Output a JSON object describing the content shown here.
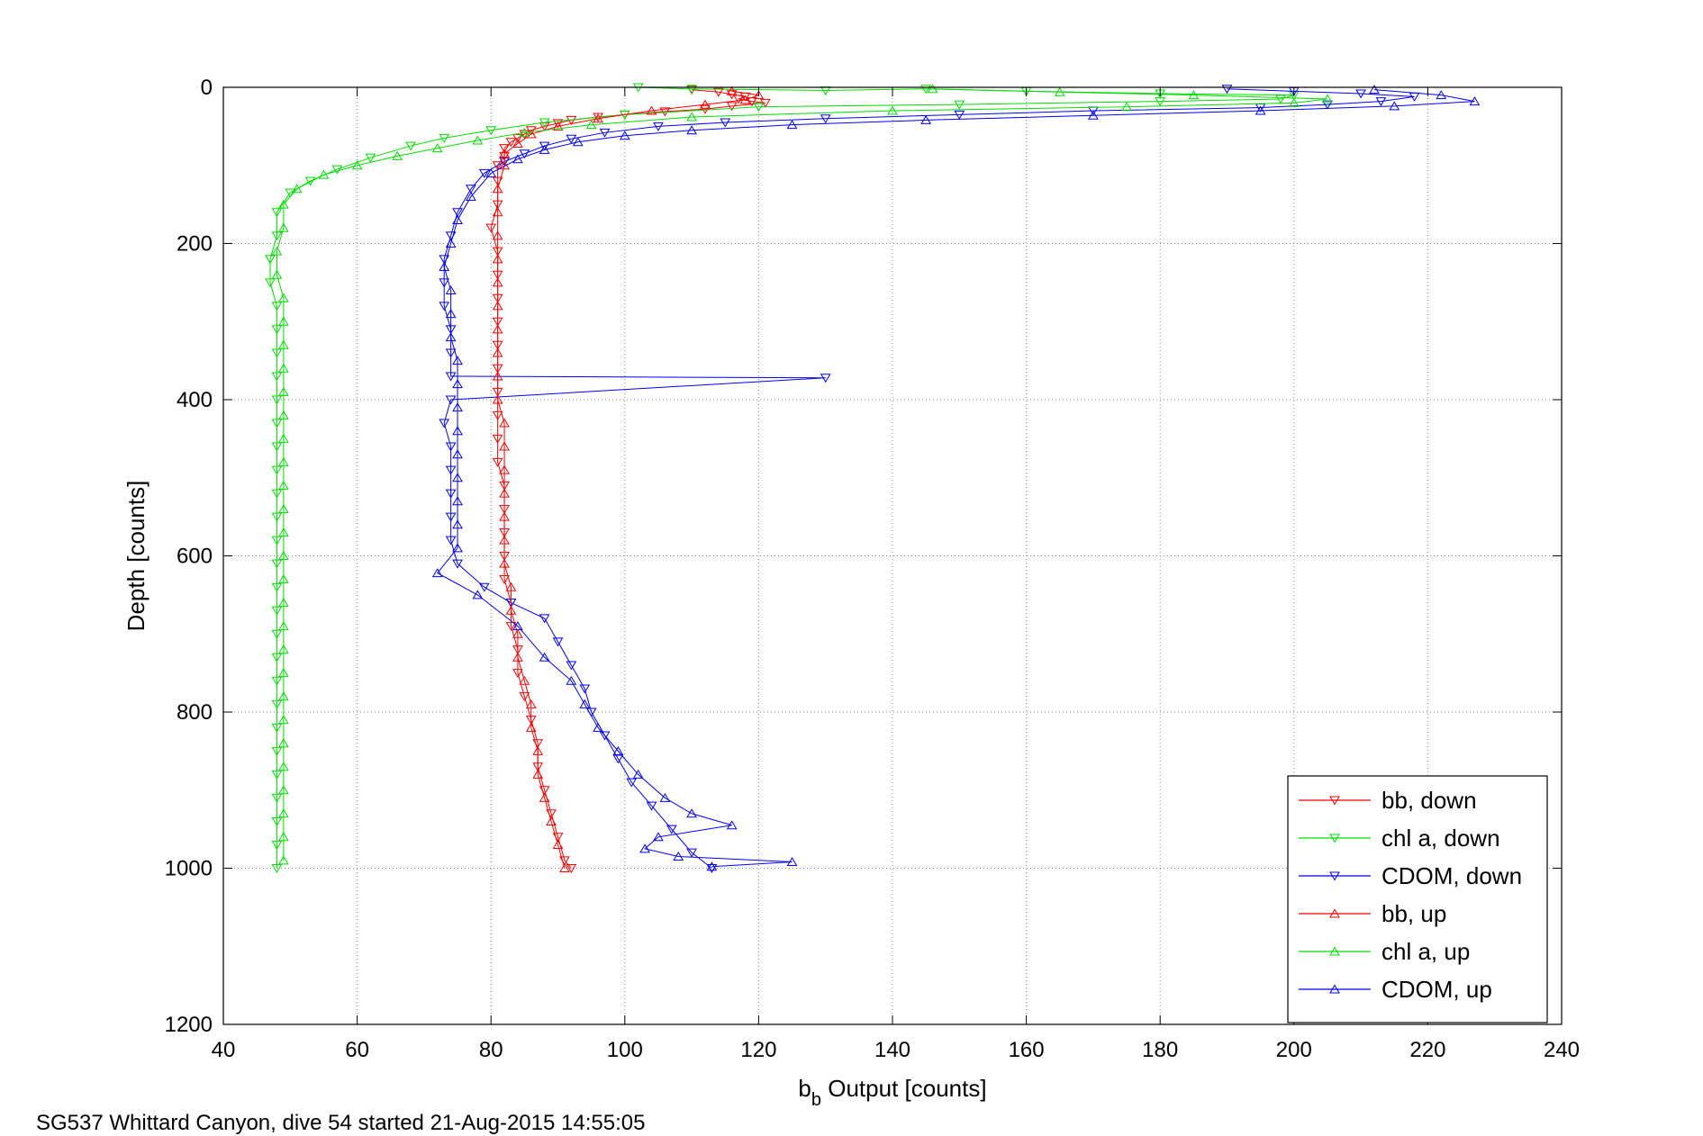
{
  "caption": "SG537 Whittard Canyon, dive 54 started 21-Aug-2015 14:55:05",
  "chart_data": {
    "type": "scatter",
    "xlabel_main": "b",
    "xlabel_sub": "b",
    "xlabel_rest": " Output [counts]",
    "ylabel": "Depth [counts]",
    "xlim": [
      40,
      240
    ],
    "ylim": [
      0,
      1200
    ],
    "y_reversed": true,
    "grid": true,
    "legend_position": "bottom-right",
    "xticks": [
      "40",
      "60",
      "80",
      "100",
      "120",
      "140",
      "160",
      "180",
      "200",
      "220",
      "240"
    ],
    "yticks": [
      "0",
      "200",
      "400",
      "600",
      "800",
      "1000",
      "1200"
    ],
    "series": [
      {
        "name": "bb, down",
        "color": "#ff0000",
        "marker": "down",
        "points": [
          [
            110,
            3
          ],
          [
            114,
            6
          ],
          [
            116,
            9
          ],
          [
            118,
            12
          ],
          [
            117,
            15
          ],
          [
            119,
            18
          ],
          [
            121,
            20
          ],
          [
            116,
            24
          ],
          [
            112,
            28
          ],
          [
            106,
            31
          ],
          [
            100,
            35
          ],
          [
            96,
            38
          ],
          [
            92,
            42
          ],
          [
            90,
            46
          ],
          [
            88,
            50
          ],
          [
            86,
            55
          ],
          [
            85,
            60
          ],
          [
            84,
            65
          ],
          [
            83,
            70
          ],
          [
            82,
            78
          ],
          [
            82,
            88
          ],
          [
            81,
            100
          ],
          [
            81,
            120
          ],
          [
            81,
            150
          ],
          [
            80,
            180
          ],
          [
            81,
            210
          ],
          [
            81,
            240
          ],
          [
            81,
            270
          ],
          [
            81,
            300
          ],
          [
            81,
            330
          ],
          [
            81,
            360
          ],
          [
            81,
            390
          ],
          [
            81,
            420
          ],
          [
            81,
            450
          ],
          [
            81,
            480
          ],
          [
            82,
            510
          ],
          [
            82,
            540
          ],
          [
            82,
            570
          ],
          [
            82,
            600
          ],
          [
            82,
            630
          ],
          [
            83,
            660
          ],
          [
            83,
            690
          ],
          [
            84,
            720
          ],
          [
            84,
            750
          ],
          [
            85,
            780
          ],
          [
            86,
            810
          ],
          [
            87,
            840
          ],
          [
            87,
            870
          ],
          [
            88,
            900
          ],
          [
            89,
            930
          ],
          [
            90,
            960
          ],
          [
            91,
            990
          ],
          [
            92,
            1000
          ]
        ]
      },
      {
        "name": "chl a, down",
        "color": "#00dd00",
        "marker": "down",
        "points": [
          [
            102,
            0
          ],
          [
            110,
            2
          ],
          [
            130,
            4
          ],
          [
            145,
            2
          ],
          [
            160,
            5
          ],
          [
            180,
            8
          ],
          [
            200,
            10
          ],
          [
            198,
            15
          ],
          [
            180,
            18
          ],
          [
            150,
            22
          ],
          [
            120,
            25
          ],
          [
            100,
            35
          ],
          [
            88,
            45
          ],
          [
            80,
            55
          ],
          [
            73,
            65
          ],
          [
            68,
            75
          ],
          [
            62,
            90
          ],
          [
            57,
            105
          ],
          [
            53,
            120
          ],
          [
            50,
            135
          ],
          [
            48,
            160
          ],
          [
            48,
            190
          ],
          [
            47,
            220
          ],
          [
            47,
            250
          ],
          [
            48,
            280
          ],
          [
            48,
            310
          ],
          [
            48,
            340
          ],
          [
            48,
            370
          ],
          [
            48,
            400
          ],
          [
            48,
            430
          ],
          [
            48,
            460
          ],
          [
            48,
            490
          ],
          [
            48,
            520
          ],
          [
            48,
            550
          ],
          [
            48,
            580
          ],
          [
            48,
            610
          ],
          [
            48,
            640
          ],
          [
            48,
            670
          ],
          [
            48,
            700
          ],
          [
            48,
            730
          ],
          [
            48,
            760
          ],
          [
            48,
            790
          ],
          [
            48,
            820
          ],
          [
            48,
            850
          ],
          [
            48,
            880
          ],
          [
            48,
            910
          ],
          [
            48,
            940
          ],
          [
            48,
            970
          ],
          [
            48,
            1000
          ]
        ]
      },
      {
        "name": "CDOM, down",
        "color": "#0000ff",
        "marker": "down",
        "points": [
          [
            190,
            2
          ],
          [
            200,
            5
          ],
          [
            210,
            8
          ],
          [
            218,
            12
          ],
          [
            213,
            18
          ],
          [
            205,
            22
          ],
          [
            195,
            26
          ],
          [
            170,
            30
          ],
          [
            150,
            35
          ],
          [
            130,
            40
          ],
          [
            115,
            45
          ],
          [
            105,
            50
          ],
          [
            97,
            58
          ],
          [
            92,
            66
          ],
          [
            88,
            75
          ],
          [
            85,
            85
          ],
          [
            82,
            95
          ],
          [
            79,
            110
          ],
          [
            77,
            130
          ],
          [
            75,
            160
          ],
          [
            74,
            190
          ],
          [
            73,
            220
          ],
          [
            73,
            250
          ],
          [
            73,
            280
          ],
          [
            74,
            310
          ],
          [
            74,
            340
          ],
          [
            74,
            370
          ],
          [
            130,
            372
          ],
          [
            74,
            400
          ],
          [
            73,
            430
          ],
          [
            74,
            460
          ],
          [
            74,
            490
          ],
          [
            74,
            520
          ],
          [
            74,
            550
          ],
          [
            74,
            580
          ],
          [
            75,
            610
          ],
          [
            79,
            640
          ],
          [
            83,
            660
          ],
          [
            88,
            680
          ],
          [
            90,
            710
          ],
          [
            92,
            740
          ],
          [
            94,
            770
          ],
          [
            95,
            800
          ],
          [
            97,
            830
          ],
          [
            99,
            860
          ],
          [
            101,
            890
          ],
          [
            104,
            920
          ],
          [
            107,
            950
          ],
          [
            110,
            980
          ],
          [
            113,
            1000
          ]
        ]
      },
      {
        "name": "bb, up",
        "color": "#ff0000",
        "marker": "up",
        "points": [
          [
            116,
            5
          ],
          [
            120,
            10
          ],
          [
            118,
            16
          ],
          [
            112,
            22
          ],
          [
            104,
            30
          ],
          [
            96,
            40
          ],
          [
            90,
            50
          ],
          [
            86,
            60
          ],
          [
            84,
            72
          ],
          [
            82,
            85
          ],
          [
            82,
            100
          ],
          [
            81,
            130
          ],
          [
            81,
            160
          ],
          [
            81,
            190
          ],
          [
            81,
            220
          ],
          [
            81,
            250
          ],
          [
            81,
            280
          ],
          [
            81,
            310
          ],
          [
            81,
            340
          ],
          [
            81,
            370
          ],
          [
            81,
            400
          ],
          [
            82,
            430
          ],
          [
            82,
            460
          ],
          [
            82,
            490
          ],
          [
            82,
            520
          ],
          [
            82,
            550
          ],
          [
            82,
            580
          ],
          [
            82,
            610
          ],
          [
            83,
            640
          ],
          [
            83,
            670
          ],
          [
            84,
            700
          ],
          [
            84,
            730
          ],
          [
            85,
            760
          ],
          [
            86,
            790
          ],
          [
            86,
            820
          ],
          [
            87,
            850
          ],
          [
            87,
            880
          ],
          [
            88,
            910
          ],
          [
            89,
            940
          ],
          [
            90,
            970
          ],
          [
            91,
            1000
          ]
        ]
      },
      {
        "name": "chl a, up",
        "color": "#00dd00",
        "marker": "up",
        "points": [
          [
            146,
            2
          ],
          [
            165,
            6
          ],
          [
            185,
            10
          ],
          [
            205,
            15
          ],
          [
            200,
            20
          ],
          [
            175,
            25
          ],
          [
            140,
            30
          ],
          [
            110,
            38
          ],
          [
            95,
            48
          ],
          [
            85,
            58
          ],
          [
            78,
            68
          ],
          [
            72,
            78
          ],
          [
            66,
            88
          ],
          [
            60,
            100
          ],
          [
            55,
            112
          ],
          [
            51,
            130
          ],
          [
            49,
            150
          ],
          [
            49,
            180
          ],
          [
            48,
            210
          ],
          [
            48,
            240
          ],
          [
            49,
            270
          ],
          [
            49,
            300
          ],
          [
            49,
            330
          ],
          [
            49,
            360
          ],
          [
            49,
            390
          ],
          [
            49,
            420
          ],
          [
            49,
            450
          ],
          [
            49,
            480
          ],
          [
            49,
            510
          ],
          [
            49,
            540
          ],
          [
            49,
            570
          ],
          [
            49,
            600
          ],
          [
            49,
            630
          ],
          [
            49,
            660
          ],
          [
            49,
            690
          ],
          [
            49,
            720
          ],
          [
            49,
            750
          ],
          [
            49,
            780
          ],
          [
            49,
            810
          ],
          [
            49,
            840
          ],
          [
            49,
            870
          ],
          [
            49,
            900
          ],
          [
            49,
            930
          ],
          [
            49,
            960
          ],
          [
            49,
            990
          ]
        ]
      },
      {
        "name": "CDOM, up",
        "color": "#0000ff",
        "marker": "up",
        "points": [
          [
            212,
            3
          ],
          [
            222,
            10
          ],
          [
            227,
            18
          ],
          [
            215,
            24
          ],
          [
            195,
            30
          ],
          [
            170,
            36
          ],
          [
            145,
            42
          ],
          [
            125,
            48
          ],
          [
            110,
            55
          ],
          [
            100,
            62
          ],
          [
            93,
            70
          ],
          [
            88,
            80
          ],
          [
            84,
            92
          ],
          [
            80,
            110
          ],
          [
            77,
            140
          ],
          [
            75,
            170
          ],
          [
            74,
            200
          ],
          [
            73,
            230
          ],
          [
            74,
            260
          ],
          [
            74,
            290
          ],
          [
            74,
            320
          ],
          [
            75,
            350
          ],
          [
            75,
            380
          ],
          [
            75,
            410
          ],
          [
            75,
            440
          ],
          [
            75,
            470
          ],
          [
            75,
            500
          ],
          [
            75,
            530
          ],
          [
            75,
            560
          ],
          [
            75,
            590
          ],
          [
            72,
            622
          ],
          [
            78,
            650
          ],
          [
            84,
            690
          ],
          [
            88,
            730
          ],
          [
            92,
            760
          ],
          [
            94,
            790
          ],
          [
            96,
            820
          ],
          [
            99,
            850
          ],
          [
            102,
            880
          ],
          [
            106,
            910
          ],
          [
            110,
            930
          ],
          [
            116,
            945
          ],
          [
            105,
            960
          ],
          [
            103,
            975
          ],
          [
            108,
            985
          ],
          [
            125,
            992
          ],
          [
            113,
            998
          ]
        ]
      }
    ]
  }
}
